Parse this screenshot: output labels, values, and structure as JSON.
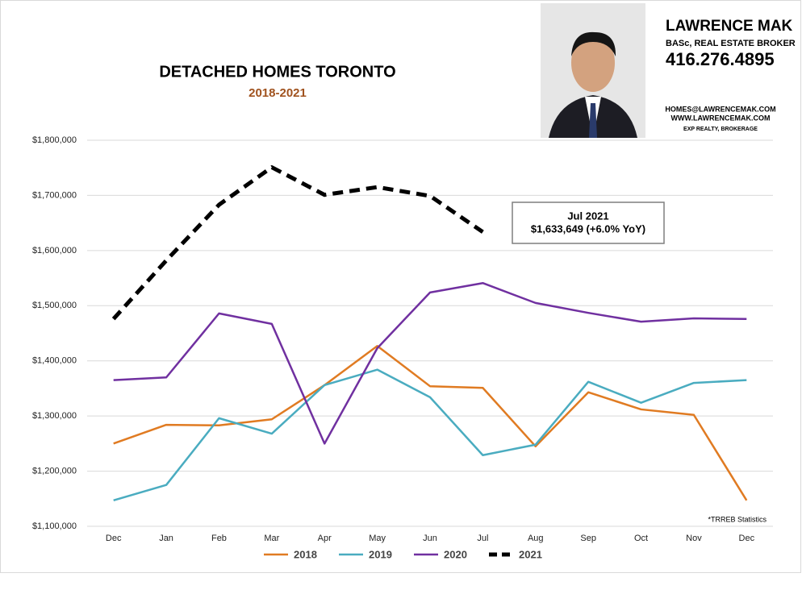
{
  "header": {
    "name": "LAWRENCE MAK",
    "credentials": "BASc, REAL ESTATE BROKER",
    "phone": "416.276.4895",
    "email": "HOMES@LAWRENCEMAK.COM",
    "website": "WWW.LAWRENCEMAK.COM",
    "brokerage": "EXP REALTY, BROKERAGE"
  },
  "chart_data": {
    "type": "line",
    "title": "DETACHED HOMES TORONTO",
    "subtitle": "2018-2021",
    "categories": [
      "Dec",
      "Jan",
      "Feb",
      "Mar",
      "Apr",
      "May",
      "Jun",
      "Jul",
      "Aug",
      "Sep",
      "Oct",
      "Nov",
      "Dec"
    ],
    "series": [
      {
        "name": "2018",
        "color": "#e07b22",
        "values": [
          1250000,
          1284000,
          1283000,
          1294000,
          1356000,
          1427000,
          1354000,
          1351000,
          1245000,
          1343000,
          1312000,
          1302000,
          1147000
        ]
      },
      {
        "name": "2019",
        "color": "#4aacc0",
        "values": [
          1147000,
          1175000,
          1296000,
          1268000,
          1356000,
          1384000,
          1334000,
          1229000,
          1248000,
          1362000,
          1324000,
          1360000,
          1365000
        ]
      },
      {
        "name": "2020",
        "color": "#7030a0",
        "values": [
          1365000,
          1370000,
          1486000,
          1467000,
          1250000,
          1423000,
          1524000,
          1541000,
          1505000,
          1487000,
          1471000,
          1477000,
          1476000
        ]
      },
      {
        "name": "2021",
        "color": "#000000",
        "dashed": true,
        "values": [
          1476000,
          1582000,
          1683000,
          1751000,
          1701000,
          1715000,
          1699000,
          1633649,
          null,
          null,
          null,
          null,
          null
        ]
      }
    ],
    "ylim": [
      1100000,
      1800000
    ],
    "yticks": [
      {
        "value": 1100000,
        "label": "$1,100,000"
      },
      {
        "value": 1200000,
        "label": "$1,200,000"
      },
      {
        "value": 1300000,
        "label": "$1,300,000"
      },
      {
        "value": 1400000,
        "label": "$1,400,000"
      },
      {
        "value": 1500000,
        "label": "$1,500,000"
      },
      {
        "value": 1600000,
        "label": "$1,600,000"
      },
      {
        "value": 1700000,
        "label": "$1,700,000"
      },
      {
        "value": 1800000,
        "label": "$1,800,000"
      }
    ],
    "grid": true,
    "annotation": {
      "title": "Jul 2021",
      "text": "$1,633,649 (+6.0% YoY)"
    },
    "source": "*TRREB Statistics"
  }
}
